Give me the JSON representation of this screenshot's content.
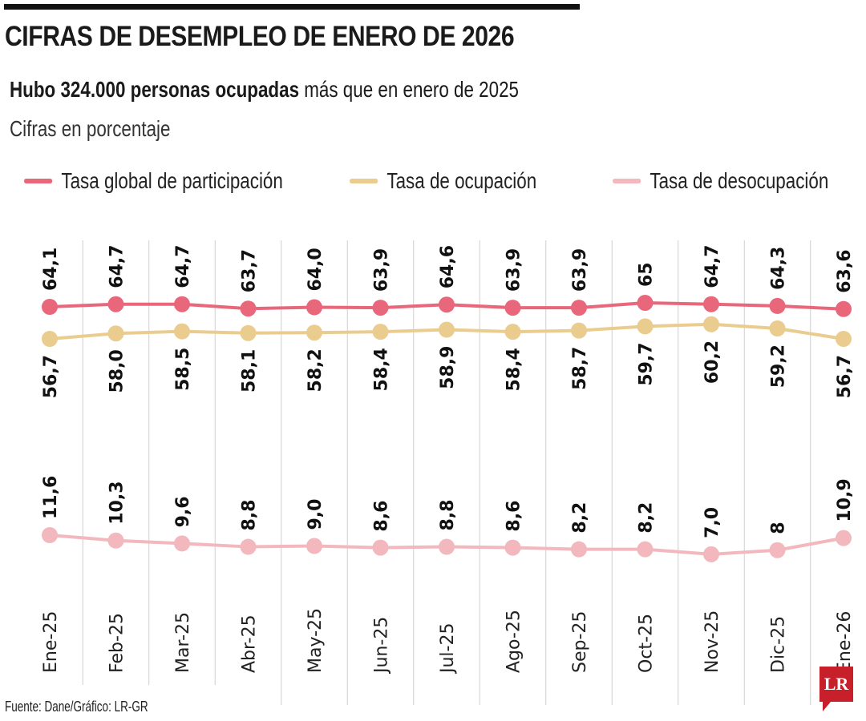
{
  "header": {
    "title": "CIFRAS DE DESEMPLEO DE ENERO DE 2026",
    "subtitle_bold": "Hubo 324.000 personas ocupadas",
    "subtitle_rest": " más que en enero de 2025",
    "unit": "Cifras en porcentaje"
  },
  "footer": {
    "source": "Fuente: Dane/Gráfico: LR-GR",
    "logo": "LR"
  },
  "chart_data": {
    "type": "line",
    "categories": [
      "Ene-25",
      "Feb-25",
      "Mar-25",
      "Abr-25",
      "May-25",
      "Jun-25",
      "Jul-25",
      "Ago-25",
      "Sep-25",
      "Oct-25",
      "Nov-25",
      "Dic-25",
      "Ene-26"
    ],
    "series": [
      {
        "name": "Tasa global de participación",
        "color": "#e8677a",
        "values": [
          64.1,
          64.7,
          64.7,
          63.7,
          64.0,
          63.9,
          64.6,
          63.9,
          63.9,
          65,
          64.7,
          64.3,
          63.6
        ],
        "labels": [
          "64,1",
          "64,7",
          "64,7",
          "63,7",
          "64,0",
          "63,9",
          "64,6",
          "63,9",
          "63,9",
          "65",
          "64,7",
          "64,3",
          "63,6"
        ]
      },
      {
        "name": "Tasa de ocupación",
        "color": "#e9cc8e",
        "values": [
          56.7,
          58.0,
          58.5,
          58.1,
          58.2,
          58.4,
          58.9,
          58.4,
          58.7,
          59.7,
          60.2,
          59.2,
          56.7
        ],
        "labels": [
          "56,7",
          "58,0",
          "58,5",
          "58,1",
          "58,2",
          "58,4",
          "58,9",
          "58,4",
          "58,7",
          "59,7",
          "60,2",
          "59,2",
          "56,7"
        ]
      },
      {
        "name": "Tasa de desocupación",
        "color": "#f2b8bd",
        "values": [
          11.6,
          10.3,
          9.6,
          8.8,
          9.0,
          8.6,
          8.8,
          8.6,
          8.2,
          8.2,
          7.0,
          8,
          10.9
        ],
        "labels": [
          "11,6",
          "10,3",
          "9,6",
          "8,8",
          "9,0",
          "8,6",
          "8,8",
          "8,6",
          "8,2",
          "8,2",
          "7,0",
          "8",
          "10,9"
        ]
      }
    ],
    "grid": "vertical",
    "legend": "top"
  }
}
